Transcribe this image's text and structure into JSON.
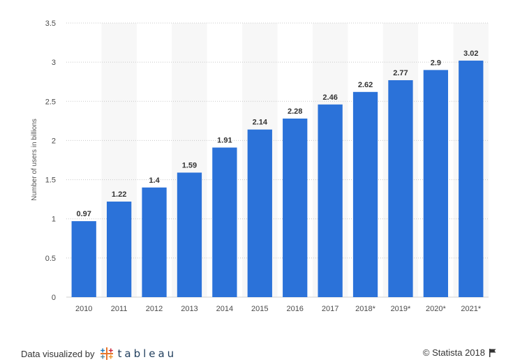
{
  "chart_data": {
    "type": "bar",
    "categories": [
      "2010",
      "2011",
      "2012",
      "2013",
      "2014",
      "2015",
      "2016",
      "2017",
      "2018*",
      "2019*",
      "2020*",
      "2021*"
    ],
    "values": [
      0.97,
      1.22,
      1.4,
      1.59,
      1.91,
      2.14,
      2.28,
      2.46,
      2.62,
      2.77,
      2.9,
      3.02
    ],
    "value_labels": [
      "0.97",
      "1.22",
      "1.4",
      "1.59",
      "1.91",
      "2.14",
      "2.28",
      "2.46",
      "2.62",
      "2.77",
      "2.9",
      "3.02"
    ],
    "ylabel": "Number of users in billions",
    "ylim": [
      0,
      3.5
    ],
    "yticks": [
      "0",
      "0.5",
      "1",
      "1.5",
      "2",
      "2.5",
      "3",
      "3.5"
    ],
    "grid": true,
    "bar_color": "#2b72d9",
    "alt_band_color": "#f7f7f7"
  },
  "footer": {
    "data_visualized_by": "Data visualized by",
    "tableau_word": "tableau",
    "copyright": "© Statista 2018"
  }
}
